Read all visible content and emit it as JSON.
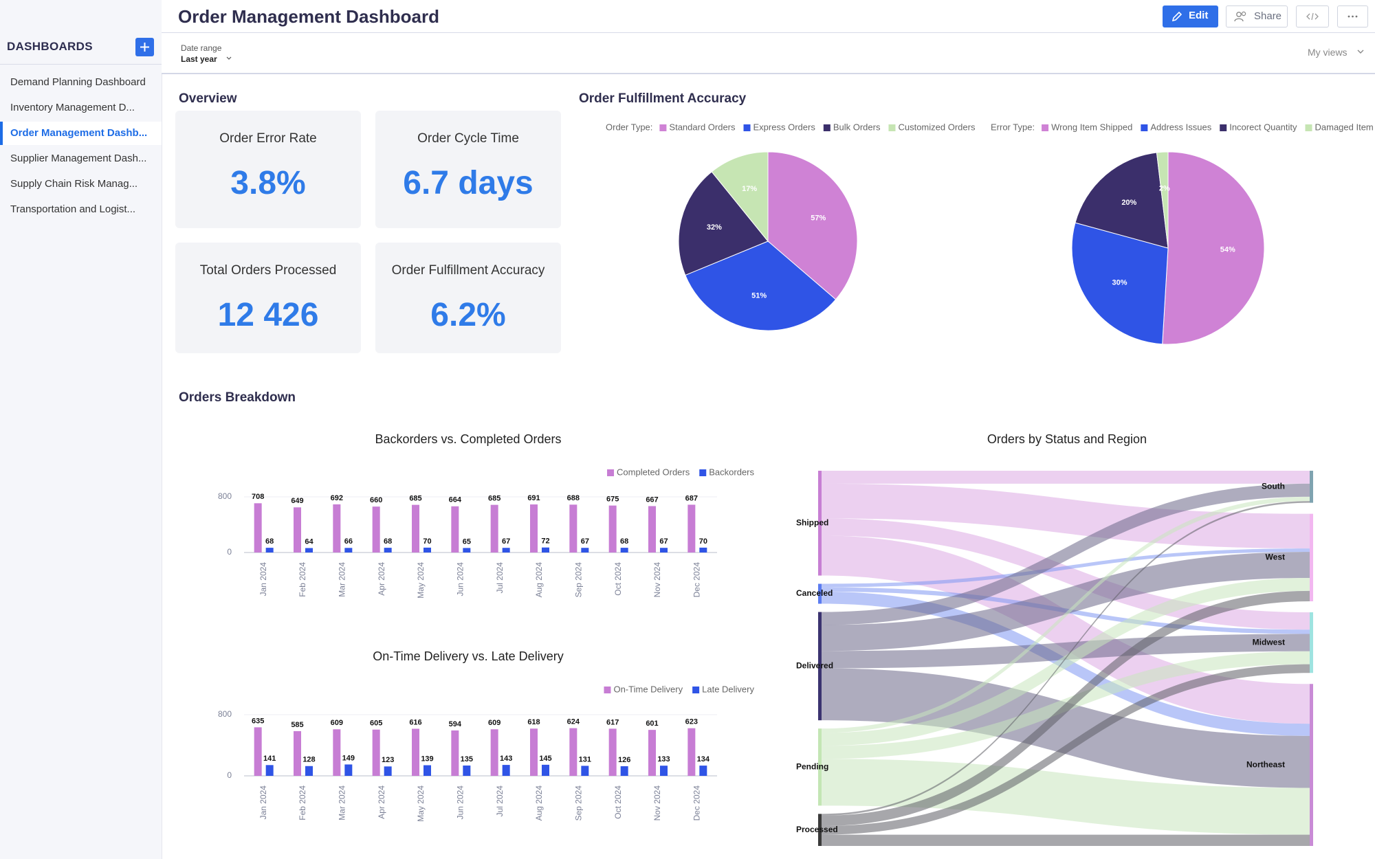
{
  "header": {
    "title": "Order Management Dashboard",
    "edit": "Edit",
    "share": "Share"
  },
  "sidebar": {
    "title": "DASHBOARDS",
    "items": [
      "Demand Planning Dashboard",
      "Inventory Management D...",
      "Order Management Dashb...",
      "Supplier Management Dash...",
      "Supply Chain Risk Manag...",
      "Transportation and Logist..."
    ],
    "active": 2
  },
  "filter": {
    "label": "Date range",
    "value": "Last year",
    "views": "My views"
  },
  "overview": {
    "title": "Overview",
    "kpis": [
      {
        "label": "Order Error Rate",
        "value": "3.8%"
      },
      {
        "label": "Order Cycle Time",
        "value": "6.7 days"
      },
      {
        "label": "Total Orders Processed",
        "value": "12 426"
      },
      {
        "label": "Order Fulfillment Accuracy",
        "value": "6.2%"
      }
    ]
  },
  "fulfillment": {
    "title": "Order Fulfillment Accuracy"
  },
  "breakdown": {
    "title": "Orders Breakdown"
  },
  "chart_data": [
    {
      "type": "pie",
      "legend_title": "Order Type:",
      "categories": [
        "Standard Orders",
        "Express Orders",
        "Bulk Orders",
        "Customized Orders"
      ],
      "colors": [
        "#cf82d5",
        "#2f54e6",
        "#3b2f6b",
        "#c6e5b3"
      ],
      "values": [
        57,
        51,
        32,
        17
      ],
      "value_labels": [
        "57%",
        "51%",
        "32%",
        "17%"
      ]
    },
    {
      "type": "pie",
      "legend_title": "Error Type:",
      "categories": [
        "Wrong Item Shipped",
        "Address Issues",
        "Incorect Quantity",
        "Damaged Item"
      ],
      "colors": [
        "#cf82d5",
        "#2f54e6",
        "#3b2f6b",
        "#c6e5b3"
      ],
      "values": [
        54,
        30,
        20,
        2
      ],
      "value_labels": [
        "54%",
        "30%",
        "20%",
        "2%"
      ]
    },
    {
      "type": "bar",
      "title": "Backorders vs. Completed Orders",
      "categories": [
        "Jan 2024",
        "Feb 2024",
        "Mar 2024",
        "Apr 2024",
        "May 2024",
        "Jun 2024",
        "Jul 2024",
        "Aug 2024",
        "Sep 2024",
        "Oct 2024",
        "Nov 2024",
        "Dec 2024"
      ],
      "series": [
        {
          "name": "Completed Orders",
          "color": "#c77dd4",
          "values": [
            708,
            649,
            692,
            660,
            685,
            664,
            685,
            691,
            688,
            675,
            667,
            687
          ]
        },
        {
          "name": "Backorders",
          "color": "#2f54e6",
          "values": [
            68,
            64,
            66,
            68,
            70,
            65,
            67,
            72,
            67,
            68,
            67,
            70
          ]
        }
      ],
      "ylim": [
        0,
        800
      ],
      "yticks": [
        0,
        800
      ],
      "legend": "top-right"
    },
    {
      "type": "bar",
      "title": "On-Time Delivery vs. Late Delivery",
      "categories": [
        "Jan 2024",
        "Feb 2024",
        "Mar 2024",
        "Apr 2024",
        "May 2024",
        "Jun 2024",
        "Jul 2024",
        "Aug 2024",
        "Sep 2024",
        "Oct 2024",
        "Nov 2024",
        "Dec 2024"
      ],
      "series": [
        {
          "name": "On-Time Delivery",
          "color": "#c77dd4",
          "values": [
            635,
            585,
            609,
            605,
            616,
            594,
            609,
            618,
            624,
            617,
            601,
            623
          ]
        },
        {
          "name": "Late Delivery",
          "color": "#2f54e6",
          "values": [
            141,
            128,
            149,
            123,
            139,
            135,
            143,
            145,
            131,
            126,
            133,
            134
          ]
        }
      ],
      "ylim": [
        0,
        800
      ],
      "yticks": [
        0,
        800
      ],
      "legend": "top-right"
    },
    {
      "type": "sankey",
      "title": "Orders by Status and Region",
      "sources": [
        {
          "name": "Shipped",
          "color": "#c77fd3",
          "link_color": "#dca9e3"
        },
        {
          "name": "Canceled",
          "color": "#5b7cf0",
          "link_color": "#7f97f2"
        },
        {
          "name": "Delivered",
          "color": "#3b3370",
          "link_color": "#6b6789"
        },
        {
          "name": "Pending",
          "color": "#c3e6b4",
          "link_color": "#c9e6bd"
        },
        {
          "name": "Processed",
          "color": "#3a3a3a",
          "link_color": "#5f5f66"
        }
      ],
      "targets": [
        {
          "name": "South",
          "color": "#7fa3b0"
        },
        {
          "name": "West",
          "color": "#f2b7f0"
        },
        {
          "name": "Midwest",
          "color": "#9ee3e0"
        },
        {
          "name": "Northeast",
          "color": "#c98bd6"
        }
      ],
      "links": [
        {
          "source": "Shipped",
          "target": "South",
          "value": 15
        },
        {
          "source": "Shipped",
          "target": "West",
          "value": 40
        },
        {
          "source": "Shipped",
          "target": "Midwest",
          "value": 20
        },
        {
          "source": "Shipped",
          "target": "Northeast",
          "value": 46
        },
        {
          "source": "Canceled",
          "target": "West",
          "value": 4
        },
        {
          "source": "Canceled",
          "target": "Midwest",
          "value": 5
        },
        {
          "source": "Canceled",
          "target": "Northeast",
          "value": 14
        },
        {
          "source": "Delivered",
          "target": "South",
          "value": 15
        },
        {
          "source": "Delivered",
          "target": "West",
          "value": 30
        },
        {
          "source": "Delivered",
          "target": "Midwest",
          "value": 20
        },
        {
          "source": "Delivered",
          "target": "Northeast",
          "value": 60
        },
        {
          "source": "Pending",
          "target": "South",
          "value": 5
        },
        {
          "source": "Pending",
          "target": "West",
          "value": 15
        },
        {
          "source": "Pending",
          "target": "Midwest",
          "value": 15
        },
        {
          "source": "Pending",
          "target": "Northeast",
          "value": 54
        },
        {
          "source": "Processed",
          "target": "South",
          "value": 2
        },
        {
          "source": "Processed",
          "target": "West",
          "value": 12
        },
        {
          "source": "Processed",
          "target": "Midwest",
          "value": 10
        },
        {
          "source": "Processed",
          "target": "Northeast",
          "value": 13
        }
      ]
    }
  ]
}
